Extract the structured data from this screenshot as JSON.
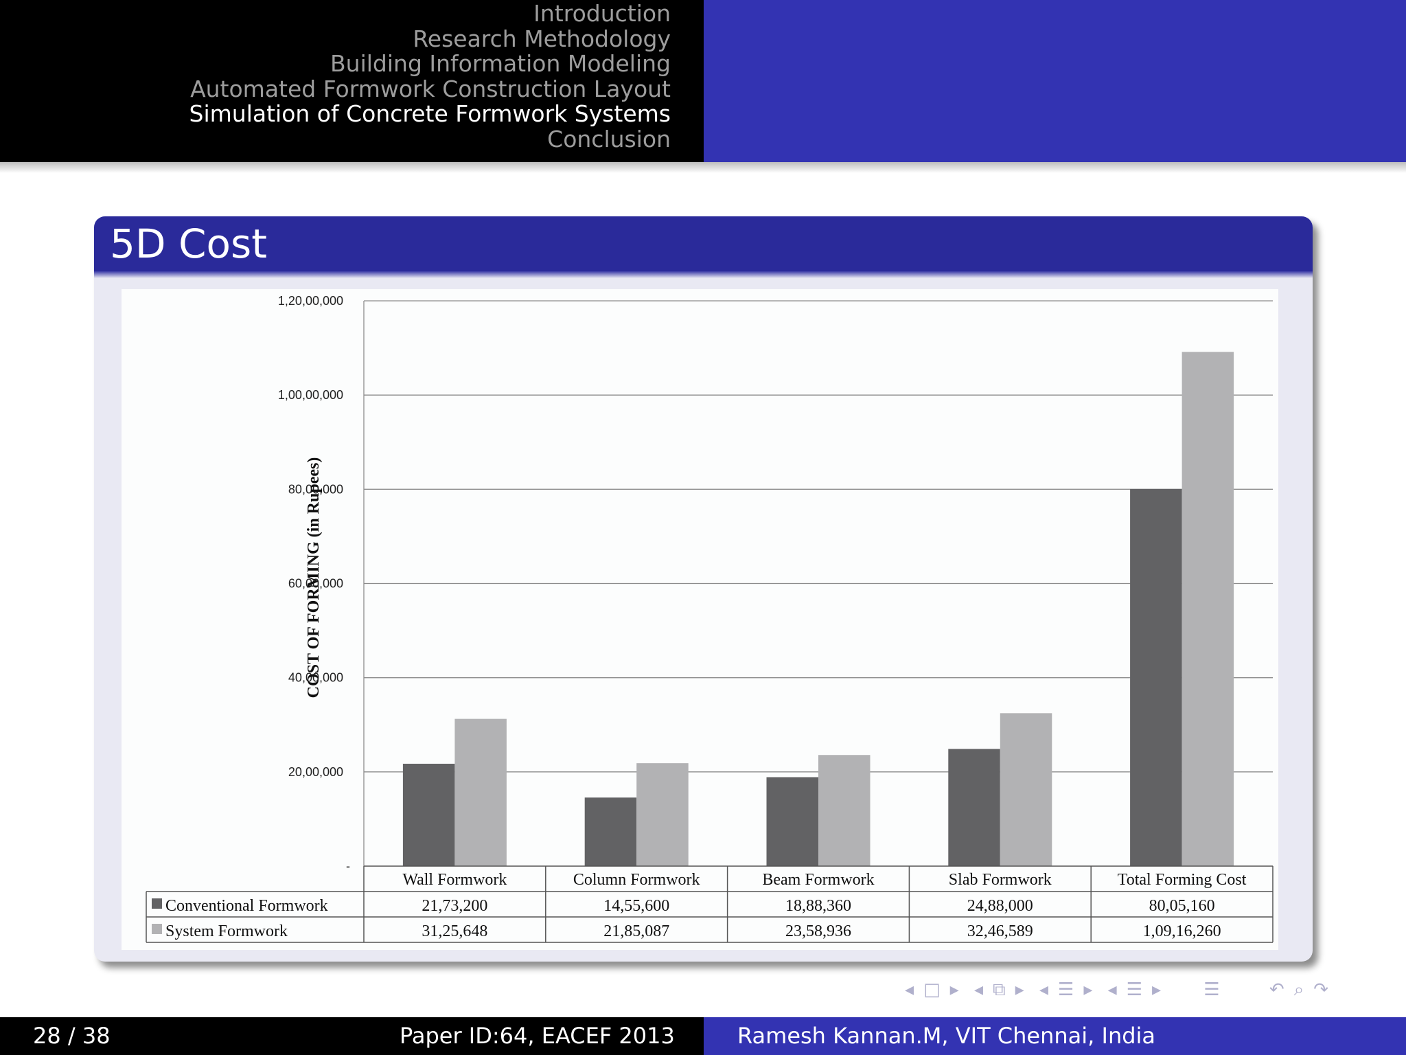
{
  "sections": [
    {
      "label": "Introduction",
      "active": false
    },
    {
      "label": "Research Methodology",
      "active": false
    },
    {
      "label": "Building Information Modeling",
      "active": false
    },
    {
      "label": "Automated Formwork Construction Layout",
      "active": false
    },
    {
      "label": "Simulation of Concrete Formwork Systems",
      "active": true
    },
    {
      "label": "Conclusion",
      "active": false
    }
  ],
  "slide": {
    "title": "5D Cost"
  },
  "footer": {
    "page": "28 / 38",
    "paper": "Paper ID:64, EACEF 2013",
    "author": "Ramesh Kannan.M, VIT Chennai, India"
  },
  "nav_icons": [
    "nav-frame-prev",
    "nav-frame",
    "nav-frame-next",
    "nav-subsection-prev",
    "nav-subsection",
    "nav-subsection-next",
    "nav-section-prev",
    "nav-section",
    "nav-section-next",
    "nav-part-prev",
    "nav-part",
    "nav-part-next",
    "nav-toc",
    "nav-back",
    "nav-search",
    "nav-forward"
  ],
  "colors": {
    "header_blue": "#3333b2",
    "block_title": "#2a2a9a",
    "conventional": "#626264",
    "system": "#b2b2b4"
  },
  "chart_data": {
    "type": "bar",
    "title": "",
    "xlabel": "",
    "ylabel": "COST OF FORMING (in Rupees)",
    "ylim": [
      0,
      12000000
    ],
    "grid": true,
    "yticks": [
      {
        "value": 0,
        "label": "-"
      },
      {
        "value": 2000000,
        "label": "20,00,000"
      },
      {
        "value": 4000000,
        "label": "40,00,000"
      },
      {
        "value": 6000000,
        "label": "60,00,000"
      },
      {
        "value": 8000000,
        "label": "80,00,000"
      },
      {
        "value": 10000000,
        "label": "1,00,00,000"
      },
      {
        "value": 12000000,
        "label": "1,20,00,000"
      }
    ],
    "categories": [
      "Wall Formwork",
      "Column Formwork",
      "Beam Formwork",
      "Slab Formwork",
      "Total Forming Cost"
    ],
    "series": [
      {
        "name": "Conventional Formwork",
        "color": "#626264",
        "values": [
          2173200,
          1455600,
          1888360,
          2488000,
          8005160
        ],
        "labels": [
          "21,73,200",
          "14,55,600",
          "18,88,360",
          "24,88,000",
          "80,05,160"
        ]
      },
      {
        "name": "System Formwork",
        "color": "#b2b2b4",
        "values": [
          3125648,
          2185087,
          2358936,
          3246589,
          10916260
        ],
        "labels": [
          "31,25,648",
          "21,85,087",
          "23,58,936",
          "32,46,589",
          "1,09,16,260"
        ]
      }
    ]
  }
}
